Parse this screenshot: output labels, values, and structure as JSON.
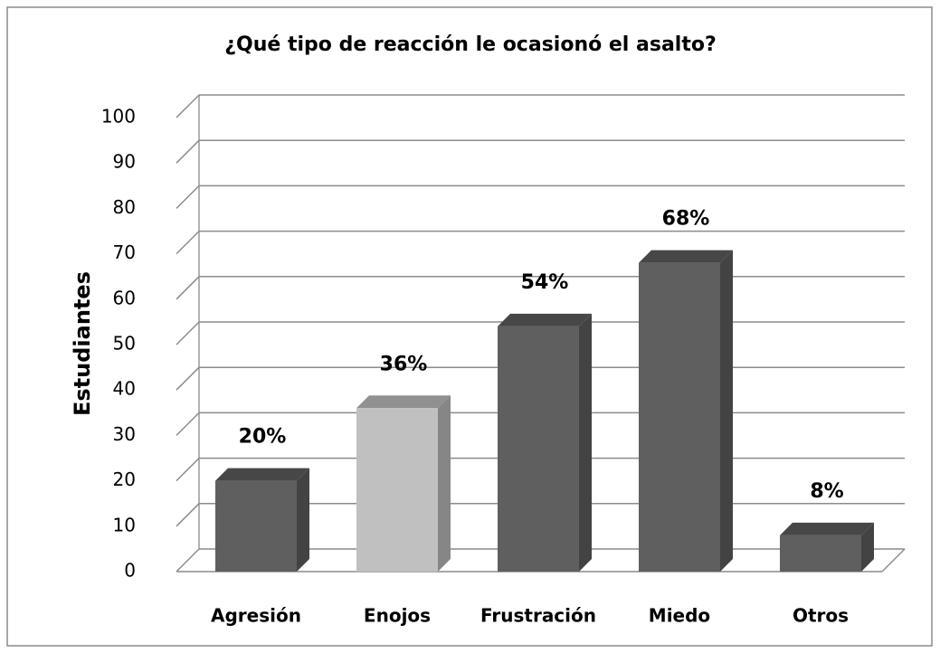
{
  "chart_data": {
    "type": "bar3d",
    "title": "¿Qué tipo de reacción le ocasionó el asalto?",
    "y_label": "Estudiantes",
    "categories": [
      "Agresión",
      "Enojos",
      "Frustración",
      "Miedo",
      "Otros"
    ],
    "values": [
      20,
      36,
      54,
      68,
      8
    ],
    "value_labels": [
      "20%",
      "36%",
      "54%",
      "68%",
      "8%"
    ],
    "colors": [
      "#5f5f5f",
      "#c0c0c0",
      "#5f5f5f",
      "#5f5f5f",
      "#5f5f5f"
    ],
    "ylim": [
      0,
      100
    ],
    "yticks": [
      0,
      10,
      20,
      30,
      40,
      50,
      60,
      70,
      80,
      90,
      100
    ],
    "grid": true
  }
}
